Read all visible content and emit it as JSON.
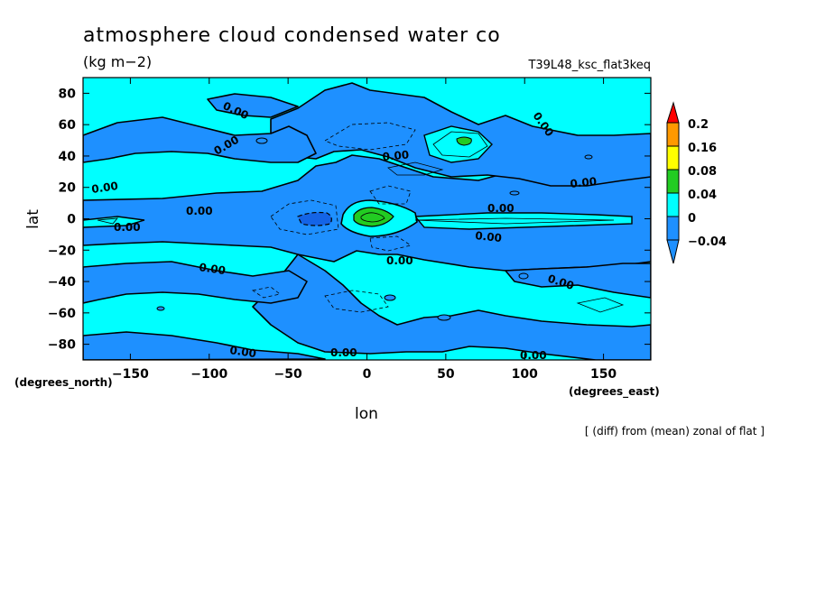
{
  "chart_data": {
    "type": "heatmap",
    "title": "atmosphere cloud condensed water co",
    "units": "(kg m−2)",
    "run_label": "T39L48_ksc_flat3keq",
    "xlabel": "lon",
    "ylabel": "lat",
    "x_units_label": "(degrees_east)",
    "y_units_label": "(degrees_north)",
    "footnote": "[ (diff) from (mean) zonal of flat ]",
    "xlim": [
      -180,
      180
    ],
    "ylim": [
      -90,
      90
    ],
    "x_ticks": [
      -150,
      -100,
      -50,
      0,
      50,
      100,
      150
    ],
    "y_ticks": [
      80,
      60,
      40,
      20,
      0,
      -20,
      -40,
      -60,
      -80
    ],
    "colorbar": {
      "levels": [
        "0.2",
        "0.16",
        "0.08",
        "0.04",
        "0",
        "−0.04"
      ],
      "fill_colors": [
        "#ff9900",
        "#ffff00",
        "#22cc22",
        "#00ffff",
        "#1e90ff"
      ],
      "under_color": "#1e90ff",
      "over_color": "#ff0000"
    },
    "contour_label_text": "0.00",
    "regions": [
      {
        "name": "background",
        "level_color": "#00ffff",
        "value_range": [
          0,
          0.04
        ]
      },
      {
        "name": "negative bands",
        "level_color": "#1e90ff",
        "value_range": [
          -0.04,
          0
        ]
      },
      {
        "name": "equatorial maximum",
        "level_color": "#22cc22",
        "value_range": [
          0.04,
          0.08
        ],
        "lon": 0,
        "lat": 2
      },
      {
        "name": "north pacific maximum",
        "level_color": "#22cc22",
        "value_range": [
          0.04,
          0.08
        ],
        "lon": 60,
        "lat": 48
      },
      {
        "name": "equatorial minimum",
        "level_color": "#1464e6",
        "value_range": [
          -0.08,
          -0.04
        ],
        "lon": -35,
        "lat": 0
      }
    ]
  }
}
